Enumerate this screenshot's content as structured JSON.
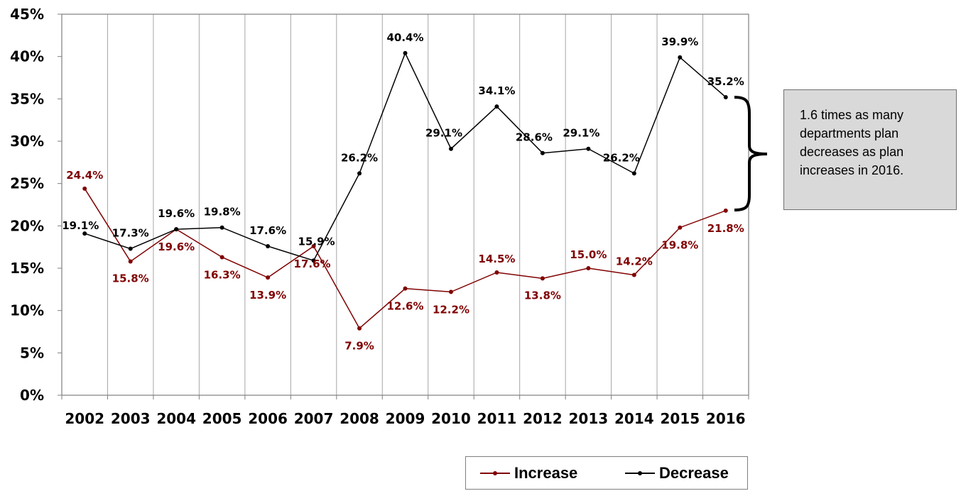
{
  "chart_data": {
    "type": "line",
    "categories": [
      "2002",
      "2003",
      "2004",
      "2005",
      "2006",
      "2007",
      "2008",
      "2009",
      "2010",
      "2011",
      "2012",
      "2013",
      "2014",
      "2015",
      "2016"
    ],
    "series": [
      {
        "name": "Increase",
        "color": "#800000",
        "values": [
          24.4,
          15.8,
          19.6,
          16.3,
          13.9,
          17.6,
          7.9,
          12.6,
          12.2,
          14.5,
          13.8,
          15.0,
          14.2,
          19.8,
          21.8
        ],
        "labels": [
          "24.4%",
          "15.8%",
          "19.6%",
          "16.3%",
          "13.9%",
          "17.6%",
          "7.9%",
          "12.6%",
          "12.2%",
          "14.5%",
          "13.8%",
          "15.0%",
          "14.2%",
          "19.8%",
          "21.8%"
        ]
      },
      {
        "name": "Decrease",
        "color": "#000000",
        "values": [
          19.1,
          17.3,
          19.6,
          19.8,
          17.6,
          15.9,
          26.2,
          40.4,
          29.1,
          34.1,
          28.6,
          29.1,
          26.2,
          39.9,
          35.2
        ],
        "labels": [
          "19.1%",
          "17.3%",
          "19.6%",
          "19.8%",
          "17.6%",
          "15.9%",
          "26.2%",
          "40.4%",
          "29.1%",
          "34.1%",
          "28.6%",
          "29.1%",
          "26.2%",
          "39.9%",
          "35.2%"
        ]
      }
    ],
    "y_ticks": [
      "0%",
      "5%",
      "10%",
      "15%",
      "20%",
      "25%",
      "30%",
      "35%",
      "40%",
      "45%"
    ],
    "ylim": [
      0,
      45
    ],
    "grid": "vertical",
    "legend_position": "bottom-right"
  },
  "annotation": {
    "text": "1.6 times as many departments plan decreases as plan increases in 2016."
  },
  "legend": {
    "increase_label": "Increase",
    "decrease_label": "Decrease"
  }
}
